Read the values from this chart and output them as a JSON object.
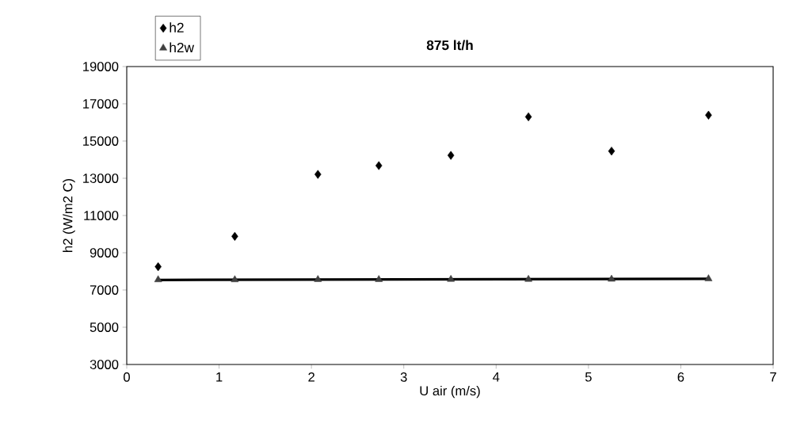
{
  "chart_data": {
    "type": "scatter",
    "title": "875 lt/h",
    "xlabel": "U air (m/s)",
    "ylabel": "h2 (W/m2 C)",
    "xlim": [
      0,
      7
    ],
    "xticks": [
      0,
      1,
      2,
      3,
      4,
      5,
      6,
      7
    ],
    "ylim": [
      3000,
      19000
    ],
    "yticks": [
      3000,
      5000,
      7000,
      9000,
      11000,
      13000,
      15000,
      17000,
      19000
    ],
    "grid": false,
    "legend": "top left",
    "series": [
      {
        "name": "h2",
        "marker": "diamond",
        "color": "#000000",
        "x": [
          0.34,
          1.17,
          2.07,
          2.73,
          3.51,
          4.35,
          5.25,
          6.3
        ],
        "values": [
          8250,
          9880,
          13210,
          13680,
          14230,
          16300,
          14460,
          16390
        ]
      },
      {
        "name": "h2w",
        "marker": "triangle",
        "color": "#404040",
        "x": [
          0.34,
          1.17,
          2.07,
          2.73,
          3.51,
          4.35,
          5.25,
          6.3
        ],
        "values": [
          7550,
          7550,
          7560,
          7560,
          7570,
          7570,
          7580,
          7600
        ]
      },
      {
        "type": "line",
        "marker": "none",
        "color": "#000000",
        "x": [
          0.34,
          6.3
        ],
        "values": [
          7540,
          7600
        ]
      }
    ]
  }
}
